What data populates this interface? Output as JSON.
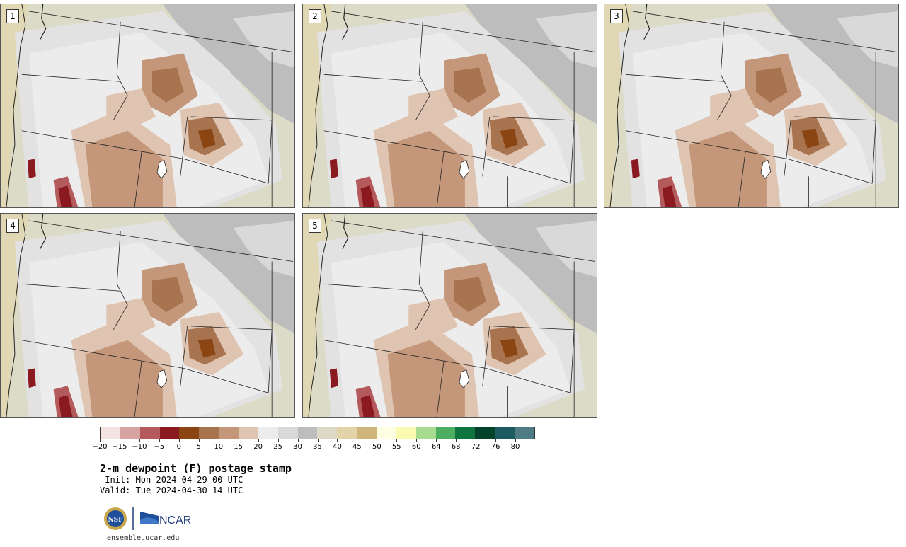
{
  "panels": [
    {
      "number": "1"
    },
    {
      "number": "2"
    },
    {
      "number": "3"
    },
    {
      "number": "4"
    },
    {
      "number": "5"
    }
  ],
  "colorbar": {
    "colors": [
      "#f3e4e1",
      "#d6a3a3",
      "#b55a5c",
      "#8a1a20",
      "#8b4513",
      "#a8734f",
      "#c4977b",
      "#dfc4b1",
      "#ececec",
      "#d9d9d9",
      "#bdbdbd",
      "#dcdac6",
      "#e3d3a9",
      "#cfb57c",
      "#fefee2",
      "#fafab0",
      "#a8dc90",
      "#4dae62",
      "#0e7440",
      "#04432b",
      "#1b5a5f",
      "#4f7c84"
    ],
    "labels": [
      "−20",
      "−15",
      "−10",
      "−5",
      "0",
      "5",
      "10",
      "15",
      "20",
      "25",
      "30",
      "35",
      "40",
      "45",
      "50",
      "55",
      "60",
      "64",
      "68",
      "72",
      "76",
      "80"
    ]
  },
  "title": "2-m dewpoint (F) postage stamp",
  "init": " Init: Mon 2024-04-29 00 UTC",
  "valid": "Valid: Tue 2024-04-30 14 UTC",
  "logos": {
    "nsf": "NSF",
    "ncar": "NCAR"
  },
  "url": "ensemble.ucar.edu"
}
